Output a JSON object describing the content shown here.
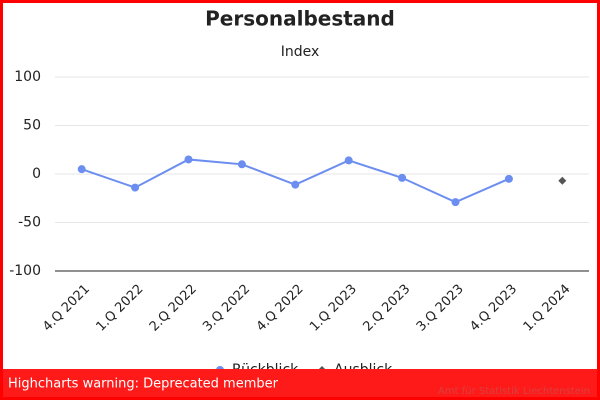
{
  "chart_data": {
    "type": "line",
    "title": "Personalbestand",
    "y_label": "Index",
    "categories": [
      "4.Q 2021",
      "1.Q 2022",
      "2.Q 2022",
      "3.Q 2022",
      "4.Q 2022",
      "1.Q 2023",
      "2.Q 2023",
      "3.Q 2023",
      "4.Q 2023",
      "1.Q 2024"
    ],
    "series": [
      {
        "name": "Rückblick",
        "color": "#6b8ef0",
        "marker": "circle",
        "values": [
          5,
          -14,
          15,
          10,
          -11,
          14,
          -4,
          -29,
          -5,
          null
        ]
      },
      {
        "name": "Ausblick",
        "color": "#555555",
        "marker": "diamond",
        "values": [
          null,
          null,
          null,
          null,
          null,
          null,
          null,
          null,
          null,
          -7
        ]
      }
    ],
    "ylim": [
      -100,
      100
    ],
    "yticks": [
      -100,
      -50,
      0,
      50,
      100
    ],
    "grid": true,
    "credits": "Amt für Statistik Liechtenstein",
    "warning": "Highcharts warning: Deprecated member"
  }
}
